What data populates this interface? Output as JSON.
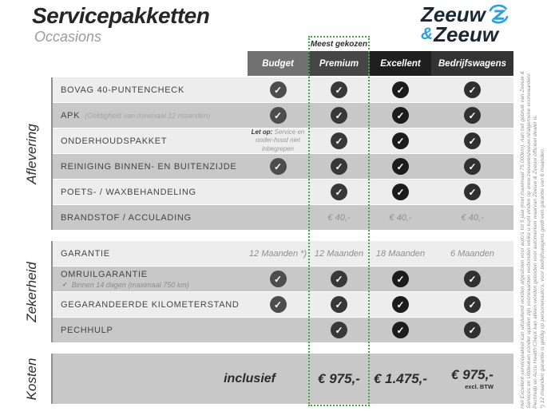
{
  "page": {
    "title": "Servicepakketten",
    "subtitle": "Occasions"
  },
  "logo": {
    "top": "Zeeuw",
    "amp": "&",
    "bottom": "Zeeuw",
    "dark_color": "#1b2733",
    "blue_color": "#2d9fd8"
  },
  "badge": {
    "label": "Meest gekozen",
    "border_color": "#3fa744"
  },
  "columns": [
    {
      "label": "Budget",
      "header_color": "#717171",
      "check_color": "#4d4d4d"
    },
    {
      "label": "Premium",
      "header_color": "#464646",
      "check_color": "#383838",
      "highlight": true
    },
    {
      "label": "Excellent",
      "header_color": "#1f1f1f",
      "check_color": "#1c1c1c"
    },
    {
      "label": "Bedrijfswagens",
      "header_color": "#333333",
      "check_color": "#303030"
    }
  ],
  "sections": [
    {
      "name": "Aflevering",
      "rows": [
        {
          "label": "BOVAG 40-PUNTENCHECK",
          "cells": [
            {
              "type": "check"
            },
            {
              "type": "check"
            },
            {
              "type": "check"
            },
            {
              "type": "check"
            }
          ]
        },
        {
          "label": "APK",
          "sub_inline": "(Geldigheid van minimaal 12 maanden)",
          "cells": [
            {
              "type": "check"
            },
            {
              "type": "check"
            },
            {
              "type": "check"
            },
            {
              "type": "check"
            }
          ]
        },
        {
          "label": "ONDERHOUDSPAKKET",
          "cells": [
            {
              "type": "note",
              "bold": "Let op:",
              "text": "Service en onder-houd niet inbegrepen"
            },
            {
              "type": "check"
            },
            {
              "type": "check"
            },
            {
              "type": "check"
            }
          ]
        },
        {
          "label": "REINIGING BINNEN- EN BUITENZIJDE",
          "cells": [
            {
              "type": "check"
            },
            {
              "type": "check"
            },
            {
              "type": "check"
            },
            {
              "type": "check"
            }
          ]
        },
        {
          "label": "POETS- / WAXBEHANDELING",
          "cells": [
            {
              "type": "empty"
            },
            {
              "type": "check"
            },
            {
              "type": "check"
            },
            {
              "type": "check"
            }
          ]
        },
        {
          "label": "BRANDSTOF / ACCULADING",
          "cells": [
            {
              "type": "empty"
            },
            {
              "type": "text",
              "value": "€ 40,-"
            },
            {
              "type": "text",
              "value": "€ 40,-"
            },
            {
              "type": "text",
              "value": "€ 40,-"
            }
          ]
        }
      ]
    },
    {
      "name": "Zekerheid",
      "rows": [
        {
          "label": "GARANTIE",
          "cells": [
            {
              "type": "text",
              "value": "12 Maanden *)"
            },
            {
              "type": "text",
              "value": "12 Maanden"
            },
            {
              "type": "text",
              "value": "18 Maanden"
            },
            {
              "type": "text",
              "value": "6 Maanden"
            }
          ]
        },
        {
          "label": "OMRUILGARANTIE",
          "sub_below": "Binnen 14 dagen (maximaal 750 km)",
          "sub_check": true,
          "cells": [
            {
              "type": "check"
            },
            {
              "type": "check"
            },
            {
              "type": "check"
            },
            {
              "type": "check"
            }
          ]
        },
        {
          "label": "GEGARANDEERDE KILOMETERSTAND",
          "cells": [
            {
              "type": "check"
            },
            {
              "type": "check"
            },
            {
              "type": "check"
            },
            {
              "type": "check"
            }
          ]
        },
        {
          "label": "PECHHULP",
          "cells": [
            {
              "type": "empty"
            },
            {
              "type": "check"
            },
            {
              "type": "check"
            },
            {
              "type": "check"
            }
          ]
        }
      ]
    },
    {
      "name": "Kosten",
      "rows": [
        {
          "label_right": "inclusief",
          "cells": [
            {
              "type": "empty"
            },
            {
              "type": "price",
              "value": "€ 975,-"
            },
            {
              "type": "price",
              "value": "€ 1.475,-"
            },
            {
              "type": "price",
              "value": "€ 975,-",
              "sub": "excl. BTW"
            }
          ]
        }
      ]
    }
  ],
  "footnotes": {
    "lines": [
      "Het Excellent-servicepakket kan uitsluitend worden afgesloten voor auto's tot 5 jaar (met maximaal 75.000km). Aan het gebruik van Zeeuw &",
      "Services en Uitdeuken zonder spuiten zijn voorwaarden verbonden welke u kunt vinden op www.zeeuwenzeeuw.nl/algemene-voorwaarden/.",
      "Pechhulp en Accu Health Check kan alleen worden geboden voor automerken waarvan Zeeuw & Zeeuw officieel dealer is.",
      "*) 12 maanden garantie is geldig op personenauto's, voor bedrijfswagens geldt een garantie van 6 maanden."
    ]
  }
}
